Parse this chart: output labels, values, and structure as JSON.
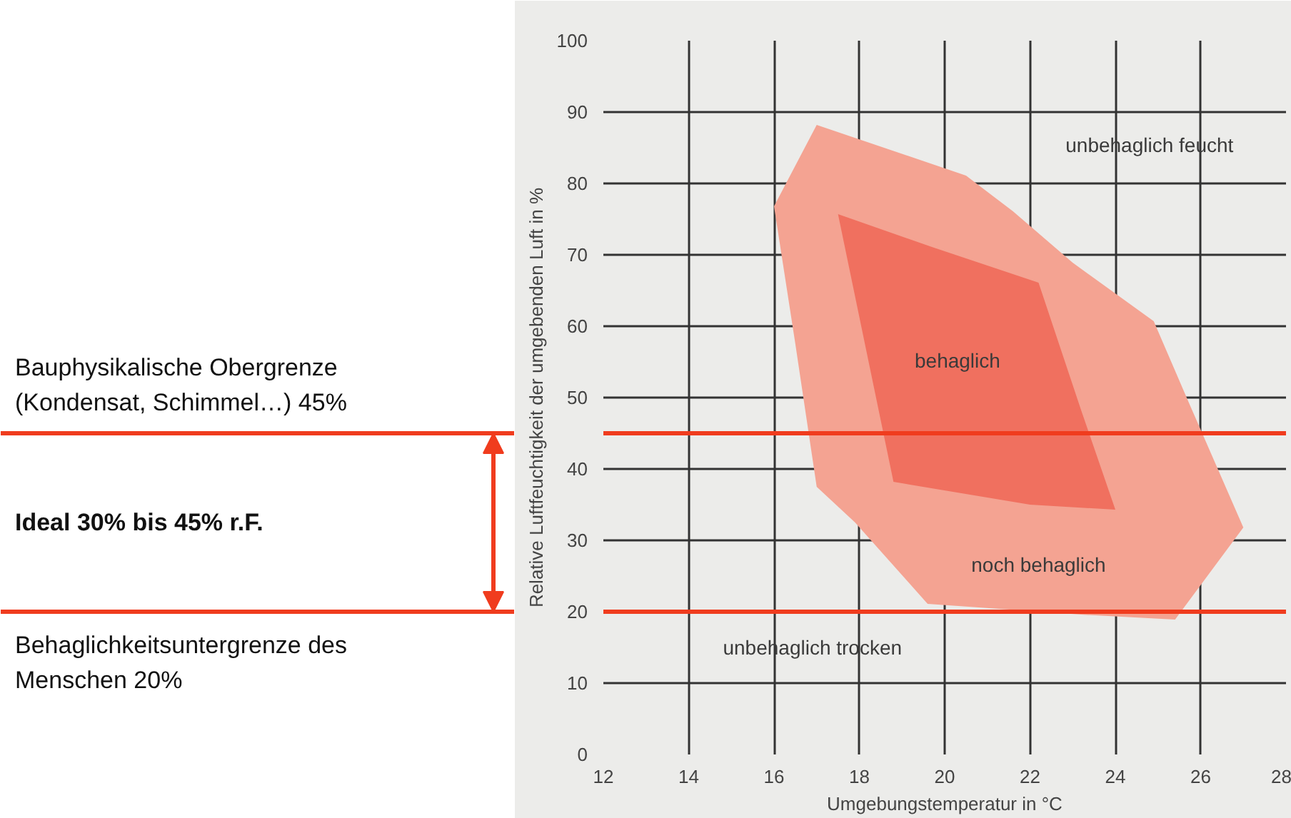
{
  "chart_data": {
    "type": "area",
    "xlabel": "Umgebungstemperatur in °C",
    "ylabel": "Relative Luftfeuchtigkeit der umgebenden Luft in %",
    "series": [
      {
        "color": "#f4a392",
        "x": [
          17.0,
          20.5,
          21.6,
          23.0,
          24.9,
          25.7,
          27.0,
          25.4,
          23.2,
          19.6,
          17.9,
          17.0,
          16.5,
          16.0
        ],
        "values": [
          88.2,
          81.1,
          76.1,
          68.9,
          60.7,
          49.6,
          31.8,
          18.9,
          19.6,
          21.1,
          32.5,
          37.5,
          57.5,
          76.8
        ]
      },
      {
        "color": "#f0705f",
        "x": [
          17.5,
          19.7,
          22.2,
          23.2,
          24.0,
          22.0,
          18.8
        ],
        "values": [
          75.7,
          71.1,
          66.1,
          48.2,
          34.3,
          35.0,
          38.2
        ]
      }
    ],
    "xlim": [
      12,
      28
    ],
    "ylim": [
      0,
      100
    ],
    "xticks": [
      12,
      14,
      16,
      18,
      20,
      22,
      24,
      26,
      28
    ],
    "yticks": [
      0,
      10,
      20,
      30,
      40,
      50,
      60,
      70,
      80,
      90,
      100
    ],
    "grid": true,
    "ref_lines": [
      {
        "axis": "y",
        "value": 45,
        "color": "#f03c1e"
      },
      {
        "axis": "y",
        "value": 20,
        "color": "#f03c1e"
      }
    ],
    "annotations": [
      "Ideal 30% bis 45% r.F.",
      "Bauphysikalische Obergrenze\n(Kondensat, Schimmel…) 45%",
      "Behaglichkeitsuntergrenze des\nMenschen 20%",
      "unbehaglich feucht",
      "behaglich",
      "noch behaglich",
      "unbehaglich trocken"
    ]
  }
}
